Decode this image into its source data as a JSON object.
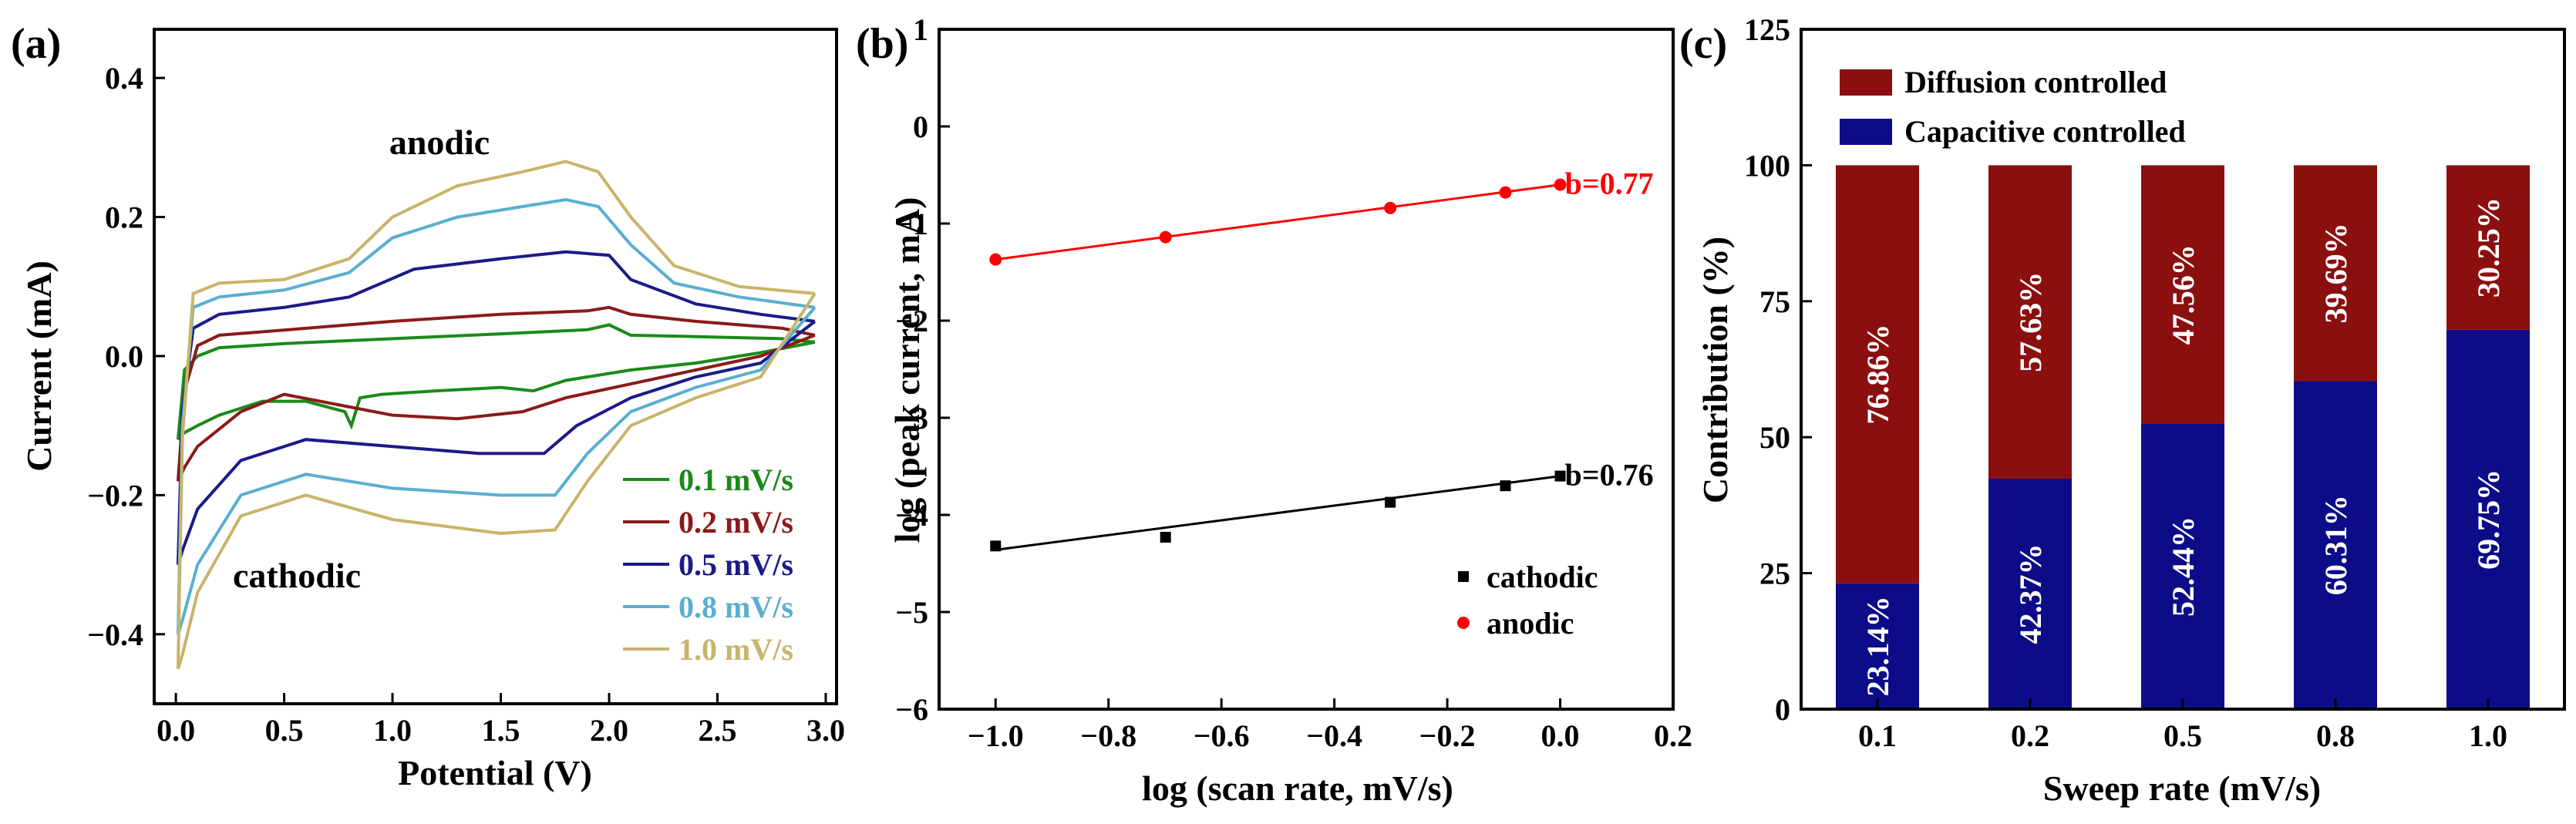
{
  "chart_data": [
    {
      "panel": "(a)",
      "type": "line",
      "xlabel": "Potential (V)",
      "ylabel": "Current (mA)",
      "xlim": [
        -0.1,
        3.05
      ],
      "ylim": [
        -0.5,
        0.47
      ],
      "xticks": [
        0.0,
        0.5,
        1.0,
        1.5,
        2.0,
        2.5,
        3.0
      ],
      "xtick_labels": [
        "0.0",
        "0.5",
        "1.0",
        "1.5",
        "2.0",
        "2.5",
        "3.0"
      ],
      "yticks": [
        -0.4,
        -0.2,
        0.0,
        0.2,
        0.4
      ],
      "ytick_labels": [
        "-0.4",
        "-0.2",
        "0.0",
        "0.2",
        "0.4"
      ],
      "annotations": [
        "anodic",
        "cathodic"
      ],
      "series": [
        {
          "name": "0.1 mV/s",
          "color": "#1a8a1a",
          "anodic": [
            [
              0.01,
              -0.12
            ],
            [
              0.04,
              -0.02
            ],
            [
              0.1,
              0.0
            ],
            [
              0.2,
              0.012
            ],
            [
              0.5,
              0.018
            ],
            [
              1.0,
              0.025
            ],
            [
              1.5,
              0.032
            ],
            [
              1.9,
              0.038
            ],
            [
              2.0,
              0.045
            ],
            [
              2.1,
              0.03
            ],
            [
              2.4,
              0.028
            ],
            [
              2.8,
              0.025
            ],
            [
              2.95,
              0.02
            ]
          ],
          "cathodic": [
            [
              2.95,
              0.02
            ],
            [
              2.7,
              0.005
            ],
            [
              2.4,
              -0.01
            ],
            [
              2.1,
              -0.02
            ],
            [
              1.8,
              -0.035
            ],
            [
              1.65,
              -0.05
            ],
            [
              1.5,
              -0.045
            ],
            [
              1.2,
              -0.05
            ],
            [
              0.95,
              -0.055
            ],
            [
              0.85,
              -0.06
            ],
            [
              0.81,
              -0.1
            ],
            [
              0.78,
              -0.08
            ],
            [
              0.6,
              -0.065
            ],
            [
              0.4,
              -0.065
            ],
            [
              0.2,
              -0.085
            ],
            [
              0.1,
              -0.1
            ],
            [
              0.04,
              -0.11
            ],
            [
              0.01,
              -0.12
            ]
          ]
        },
        {
          "name": "0.2 mV/s",
          "color": "#8b1a1a",
          "anodic": [
            [
              0.01,
              -0.18
            ],
            [
              0.04,
              -0.05
            ],
            [
              0.1,
              0.015
            ],
            [
              0.2,
              0.03
            ],
            [
              0.6,
              0.04
            ],
            [
              1.0,
              0.05
            ],
            [
              1.5,
              0.06
            ],
            [
              1.9,
              0.065
            ],
            [
              2.0,
              0.07
            ],
            [
              2.1,
              0.06
            ],
            [
              2.4,
              0.05
            ],
            [
              2.8,
              0.04
            ],
            [
              2.95,
              0.03
            ]
          ],
          "cathodic": [
            [
              2.95,
              0.03
            ],
            [
              2.7,
              0.0
            ],
            [
              2.4,
              -0.02
            ],
            [
              2.1,
              -0.04
            ],
            [
              1.8,
              -0.06
            ],
            [
              1.6,
              -0.08
            ],
            [
              1.3,
              -0.09
            ],
            [
              1.0,
              -0.085
            ],
            [
              0.75,
              -0.07
            ],
            [
              0.5,
              -0.055
            ],
            [
              0.3,
              -0.08
            ],
            [
              0.1,
              -0.13
            ],
            [
              0.04,
              -0.16
            ],
            [
              0.01,
              -0.18
            ]
          ]
        },
        {
          "name": "0.5 mV/s",
          "color": "#1a1a8a",
          "anodic": [
            [
              0.01,
              -0.3
            ],
            [
              0.03,
              -0.08
            ],
            [
              0.08,
              0.04
            ],
            [
              0.2,
              0.06
            ],
            [
              0.5,
              0.07
            ],
            [
              0.8,
              0.085
            ],
            [
              1.1,
              0.125
            ],
            [
              1.5,
              0.14
            ],
            [
              1.8,
              0.15
            ],
            [
              2.0,
              0.145
            ],
            [
              2.1,
              0.11
            ],
            [
              2.4,
              0.075
            ],
            [
              2.7,
              0.06
            ],
            [
              2.95,
              0.05
            ]
          ],
          "cathodic": [
            [
              2.95,
              0.05
            ],
            [
              2.7,
              -0.01
            ],
            [
              2.4,
              -0.03
            ],
            [
              2.1,
              -0.06
            ],
            [
              1.85,
              -0.1
            ],
            [
              1.7,
              -0.14
            ],
            [
              1.4,
              -0.14
            ],
            [
              1.0,
              -0.13
            ],
            [
              0.6,
              -0.12
            ],
            [
              0.3,
              -0.15
            ],
            [
              0.1,
              -0.22
            ],
            [
              0.03,
              -0.28
            ],
            [
              0.01,
              -0.3
            ]
          ]
        },
        {
          "name": "0.8 mV/s",
          "color": "#5aaed0",
          "anodic": [
            [
              0.01,
              -0.4
            ],
            [
              0.03,
              -0.1
            ],
            [
              0.08,
              0.07
            ],
            [
              0.2,
              0.085
            ],
            [
              0.5,
              0.095
            ],
            [
              0.8,
              0.12
            ],
            [
              1.0,
              0.17
            ],
            [
              1.3,
              0.2
            ],
            [
              1.6,
              0.215
            ],
            [
              1.8,
              0.225
            ],
            [
              1.95,
              0.215
            ],
            [
              2.1,
              0.16
            ],
            [
              2.3,
              0.105
            ],
            [
              2.6,
              0.085
            ],
            [
              2.95,
              0.07
            ]
          ],
          "cathodic": [
            [
              2.95,
              0.07
            ],
            [
              2.7,
              -0.02
            ],
            [
              2.4,
              -0.045
            ],
            [
              2.1,
              -0.08
            ],
            [
              1.9,
              -0.14
            ],
            [
              1.75,
              -0.2
            ],
            [
              1.5,
              -0.2
            ],
            [
              1.0,
              -0.19
            ],
            [
              0.6,
              -0.17
            ],
            [
              0.3,
              -0.2
            ],
            [
              0.1,
              -0.3
            ],
            [
              0.03,
              -0.38
            ],
            [
              0.01,
              -0.4
            ]
          ]
        },
        {
          "name": "1.0 mV/s",
          "color": "#c8b46a",
          "anodic": [
            [
              0.01,
              -0.45
            ],
            [
              0.03,
              -0.12
            ],
            [
              0.08,
              0.09
            ],
            [
              0.2,
              0.105
            ],
            [
              0.5,
              0.11
            ],
            [
              0.8,
              0.14
            ],
            [
              1.0,
              0.2
            ],
            [
              1.3,
              0.245
            ],
            [
              1.6,
              0.265
            ],
            [
              1.8,
              0.28
            ],
            [
              1.95,
              0.265
            ],
            [
              2.1,
              0.2
            ],
            [
              2.3,
              0.13
            ],
            [
              2.6,
              0.1
            ],
            [
              2.95,
              0.09
            ]
          ],
          "cathodic": [
            [
              2.95,
              0.09
            ],
            [
              2.7,
              -0.03
            ],
            [
              2.4,
              -0.06
            ],
            [
              2.1,
              -0.1
            ],
            [
              1.9,
              -0.18
            ],
            [
              1.75,
              -0.25
            ],
            [
              1.5,
              -0.255
            ],
            [
              1.0,
              -0.235
            ],
            [
              0.6,
              -0.2
            ],
            [
              0.3,
              -0.23
            ],
            [
              0.1,
              -0.34
            ],
            [
              0.03,
              -0.43
            ],
            [
              0.01,
              -0.45
            ]
          ]
        }
      ]
    },
    {
      "panel": "(b)",
      "type": "scatter",
      "xlabel": "log (scan rate, mV/s)",
      "ylabel": "log (peak current, mA)",
      "xlim": [
        -1.1,
        0.2
      ],
      "ylim": [
        -6,
        1
      ],
      "xticks": [
        -1.0,
        -0.8,
        -0.6,
        -0.4,
        -0.2,
        0.0,
        0.2
      ],
      "xtick_labels": [
        "-1.0",
        "-0.8",
        "-0.6",
        "-0.4",
        "-0.2",
        "0.0",
        "0.2"
      ],
      "yticks": [
        -6,
        -5,
        -4,
        -3,
        -2,
        -1,
        0,
        1
      ],
      "ytick_labels": [
        "-6",
        "-5",
        "-4",
        "-3",
        "-2",
        "-1",
        "0",
        "1"
      ],
      "series": [
        {
          "name": "cathodic",
          "color": "#000000",
          "marker": "square",
          "x": [
            -1.0,
            -0.699,
            -0.301,
            -0.097,
            0.0
          ],
          "y": [
            -4.32,
            -4.23,
            -3.87,
            -3.7,
            -3.6
          ],
          "fit": [
            [
              -1.0,
              -4.36
            ],
            [
              0.0,
              -3.6
            ]
          ],
          "fit_label": "b=0.76"
        },
        {
          "name": "anodic",
          "color": "#ff0000",
          "marker": "circle",
          "x": [
            -1.0,
            -0.699,
            -0.301,
            -0.097,
            0.0
          ],
          "y": [
            -1.37,
            -1.14,
            -0.84,
            -0.68,
            -0.6
          ],
          "fit": [
            [
              -1.0,
              -1.37
            ],
            [
              0.0,
              -0.6
            ]
          ],
          "fit_label": "b=0.77"
        }
      ]
    },
    {
      "panel": "(c)",
      "type": "bar",
      "stacked": true,
      "xlabel": "Sweep rate (mV/s)",
      "ylabel": "Contribution (%)",
      "ylim": [
        0,
        125
      ],
      "yticks": [
        0,
        25,
        50,
        75,
        100,
        125
      ],
      "ytick_labels": [
        "0",
        "25",
        "50",
        "75",
        "100",
        "125"
      ],
      "categories": [
        "0.1",
        "0.2",
        "0.5",
        "0.8",
        "1.0"
      ],
      "series": [
        {
          "name": "Capacitive controlled",
          "color": "#0c0c88",
          "values": [
            23.14,
            42.37,
            52.44,
            60.31,
            69.75
          ],
          "labels": [
            "23.14%",
            "42.37%",
            "52.44%",
            "60.31%",
            "69.75%"
          ]
        },
        {
          "name": "Diffusion controlled",
          "color": "#8b0f0f",
          "values": [
            76.86,
            57.63,
            47.56,
            39.69,
            30.25
          ],
          "labels": [
            "76.86%",
            "57.63%",
            "47.56%",
            "39.69%",
            "30.25%"
          ]
        }
      ]
    }
  ]
}
